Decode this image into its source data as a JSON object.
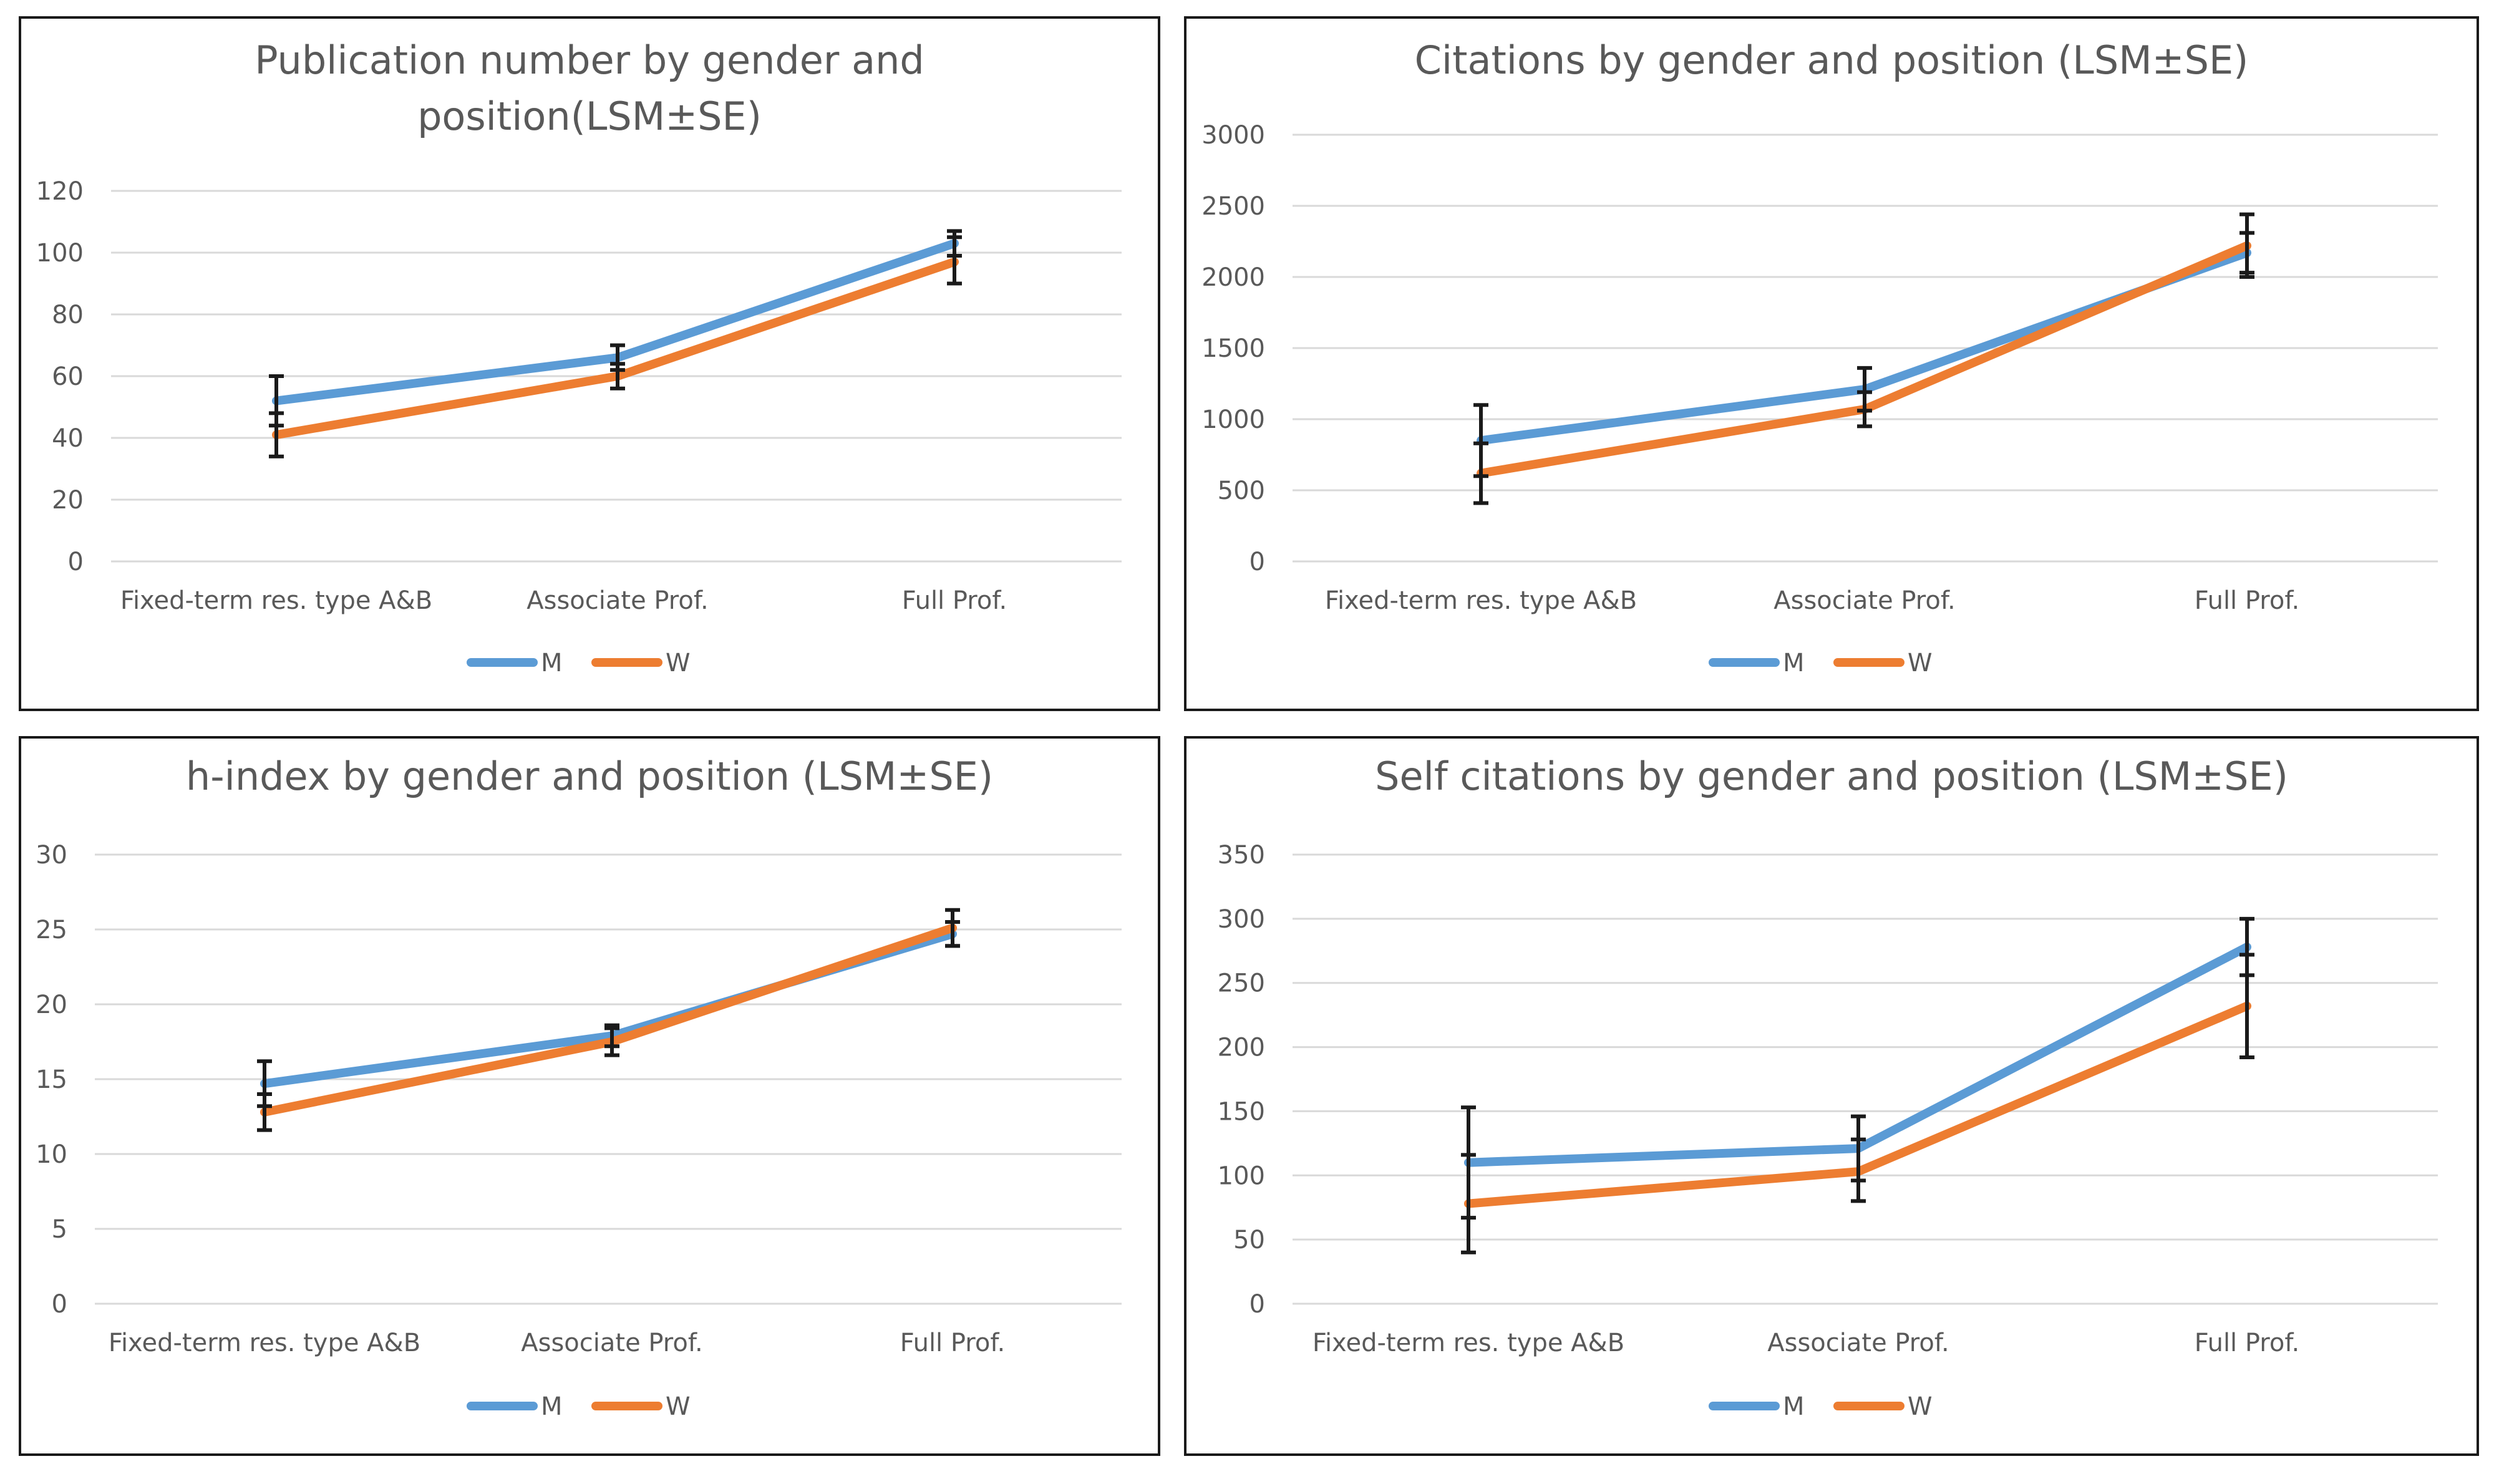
{
  "colors": {
    "M": "#5b9bd5",
    "W": "#ed7d31",
    "errorbar": "#1a1a1a",
    "grid": "#d9d9d9",
    "text": "#595959"
  },
  "chart_data": [
    {
      "type": "line",
      "title_lines": [
        "Publication number by gender and",
        "position(LSM±SE)"
      ],
      "categories": [
        "Fixed-term res. type A&B",
        "Associate Prof.",
        "Full Prof."
      ],
      "ylim": [
        0,
        120
      ],
      "yticks": [
        0,
        20,
        40,
        60,
        80,
        100,
        120
      ],
      "grid": true,
      "legend": "bottom",
      "series": [
        {
          "name": "M",
          "color": "#5b9bd5",
          "values": [
            52,
            66,
            103
          ],
          "errors": [
            [
              44,
              60
            ],
            [
              62,
              70
            ],
            [
              99,
              107
            ]
          ]
        },
        {
          "name": "W",
          "color": "#ed7d31",
          "values": [
            41,
            60,
            97
          ],
          "errors": [
            [
              34,
              48
            ],
            [
              56,
              64
            ],
            [
              90,
              105
            ]
          ]
        }
      ]
    },
    {
      "type": "line",
      "title_lines": [
        "Citations by gender and position (LSM±SE)"
      ],
      "categories": [
        "Fixed-term res. type A&B",
        "Associate Prof.",
        "Full Prof."
      ],
      "ylim": [
        0,
        3000
      ],
      "yticks": [
        0,
        500,
        1000,
        1500,
        2000,
        2500,
        3000
      ],
      "grid": true,
      "legend": "bottom",
      "series": [
        {
          "name": "M",
          "color": "#5b9bd5",
          "values": [
            850,
            1210,
            2170
          ],
          "errors": [
            [
              600,
              1100
            ],
            [
              1060,
              1360
            ],
            [
              2030,
              2310
            ]
          ]
        },
        {
          "name": "W",
          "color": "#ed7d31",
          "values": [
            620,
            1070,
            2220
          ],
          "errors": [
            [
              410,
              830
            ],
            [
              950,
              1190
            ],
            [
              2000,
              2440
            ]
          ]
        }
      ]
    },
    {
      "type": "line",
      "title_lines": [
        "h-index by gender and position (LSM±SE)"
      ],
      "categories": [
        "Fixed-term res. type A&B",
        "Associate Prof.",
        "Full Prof."
      ],
      "ylim": [
        0,
        30
      ],
      "yticks": [
        0,
        5,
        10,
        15,
        20,
        25,
        30
      ],
      "grid": true,
      "legend": "bottom",
      "series": [
        {
          "name": "M",
          "color": "#5b9bd5",
          "values": [
            14.7,
            17.9,
            24.7
          ],
          "errors": [
            [
              13.2,
              16.2
            ],
            [
              17.2,
              18.6
            ],
            [
              23.9,
              25.5
            ]
          ]
        },
        {
          "name": "W",
          "color": "#ed7d31",
          "values": [
            12.8,
            17.5,
            25.1
          ],
          "errors": [
            [
              11.6,
              14.0
            ],
            [
              16.6,
              18.4
            ],
            [
              23.9,
              26.3
            ]
          ]
        }
      ]
    },
    {
      "type": "line",
      "title_lines": [
        "Self citations by gender and position (LSM±SE)"
      ],
      "categories": [
        "Fixed-term res. type A&B",
        "Associate Prof.",
        "Full Prof."
      ],
      "ylim": [
        0,
        350
      ],
      "yticks": [
        0,
        50,
        100,
        150,
        200,
        250,
        300,
        350
      ],
      "grid": true,
      "legend": "bottom",
      "series": [
        {
          "name": "M",
          "color": "#5b9bd5",
          "values": [
            110,
            121,
            278
          ],
          "errors": [
            [
              67,
              153
            ],
            [
              96,
              146
            ],
            [
              256,
              300
            ]
          ]
        },
        {
          "name": "W",
          "color": "#ed7d31",
          "values": [
            78,
            103,
            232
          ],
          "errors": [
            [
              40,
              116
            ],
            [
              80,
              128
            ],
            [
              192,
              272
            ]
          ]
        }
      ]
    }
  ]
}
